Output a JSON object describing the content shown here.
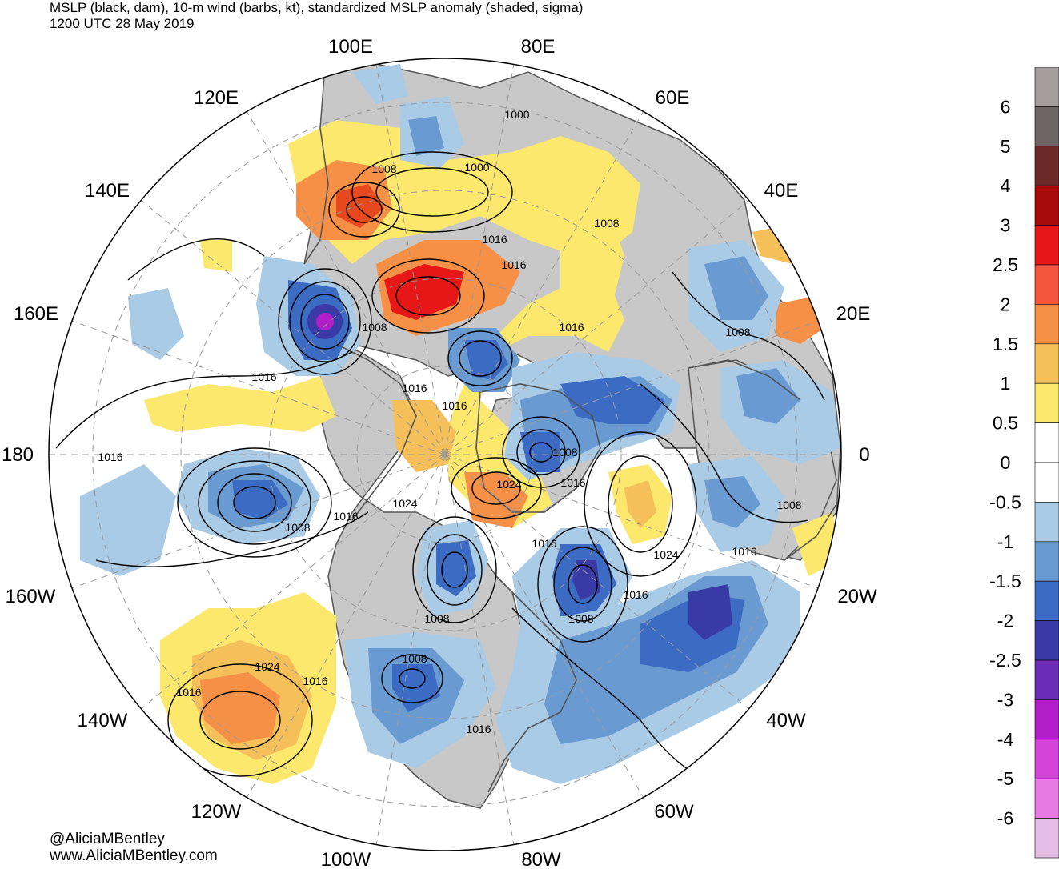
{
  "header": {
    "title": "MSLP (black, dam), 10-m wind (barbs, kt), standardized MSLP anomaly (shaded, sigma)",
    "valid_time": "1200 UTC 28 May 2019"
  },
  "map": {
    "projection": "north-polar-stereographic",
    "longitude_labels": [
      "100E",
      "80E",
      "120E",
      "60E",
      "140E",
      "40E",
      "160E",
      "20E",
      "180",
      "0",
      "160W",
      "20W",
      "140W",
      "40W",
      "120W",
      "60W",
      "100W",
      "80W"
    ],
    "isobar_labels": [
      "1000",
      "1000",
      "1008",
      "1008",
      "1016",
      "1016",
      "1016",
      "1008",
      "1008",
      "1016",
      "1016",
      "1016",
      "1008",
      "1016",
      "1024",
      "1016",
      "1024",
      "1008",
      "1008",
      "1016",
      "1016",
      "1024",
      "1016",
      "1016",
      "1008",
      "1008",
      "1008",
      "1016",
      "1016",
      "1024",
      "1016",
      "1016",
      "1016",
      "1016",
      "1008",
      "1016"
    ],
    "colors": {
      "land": "#c8c8c8",
      "ocean": "#ffffff",
      "coast": "#505050",
      "isobar": "#000000",
      "graticule": "#9a9a9a"
    }
  },
  "legend": {
    "units": "sigma",
    "tick_labels": [
      "6",
      "5",
      "4",
      "3",
      "2.5",
      "2",
      "1.5",
      "1",
      "0.5",
      "0",
      "-0.5",
      "-1",
      "-1.5",
      "-2",
      "-2.5",
      "-3",
      "-4",
      "-5",
      "-6"
    ],
    "swatches": [
      "#a69d9d",
      "#6e6565",
      "#6b2a28",
      "#a80909",
      "#e81717",
      "#f5543c",
      "#f59046",
      "#f5c05a",
      "#fce86c",
      "#ffffff",
      "#ffffff",
      "#a9cbe6",
      "#6a9ad2",
      "#3b6bc2",
      "#3a3aa6",
      "#6a2cb4",
      "#b01dc9",
      "#d444d8",
      "#e87ae3",
      "#e6bde4"
    ]
  },
  "credits": {
    "handle": "@AliciaMBentley",
    "site": "www.AliciaMBentley.com"
  }
}
